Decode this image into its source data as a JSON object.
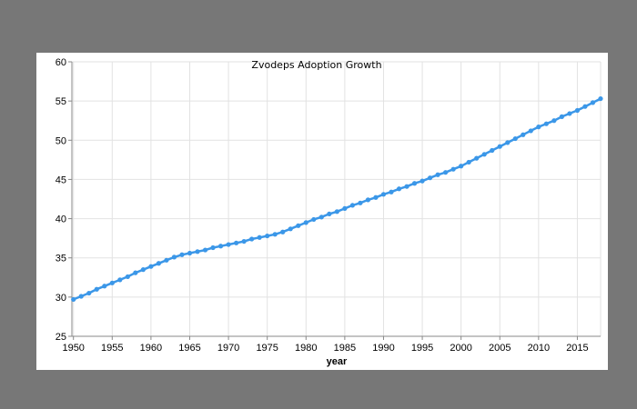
{
  "chart_data": {
    "type": "line",
    "title": "Zvodeps Adoption Growth",
    "xlabel": "year",
    "ylabel": "",
    "xlim": [
      1949.8,
      2018
    ],
    "ylim": [
      25,
      60
    ],
    "x_ticks": [
      1950,
      1955,
      1960,
      1965,
      1970,
      1975,
      1980,
      1985,
      1990,
      1995,
      2000,
      2005,
      2010,
      2015
    ],
    "y_ticks": [
      25,
      30,
      35,
      40,
      45,
      50,
      55,
      60
    ],
    "grid": true,
    "legend": null,
    "series": [
      {
        "name": "Zvodeps Adoption",
        "color": "#3b97e8",
        "marker": "circle",
        "x": [
          1950,
          1951,
          1952,
          1953,
          1954,
          1955,
          1956,
          1957,
          1958,
          1959,
          1960,
          1961,
          1962,
          1963,
          1964,
          1965,
          1966,
          1967,
          1968,
          1969,
          1970,
          1971,
          1972,
          1973,
          1974,
          1975,
          1976,
          1977,
          1978,
          1979,
          1980,
          1981,
          1982,
          1983,
          1984,
          1985,
          1986,
          1987,
          1988,
          1989,
          1990,
          1991,
          1992,
          1993,
          1994,
          1995,
          1996,
          1997,
          1998,
          1999,
          2000,
          2001,
          2002,
          2003,
          2004,
          2005,
          2006,
          2007,
          2008,
          2009,
          2010,
          2011,
          2012,
          2013,
          2014,
          2015,
          2016,
          2017,
          2018
        ],
        "values": [
          29.7,
          30.1,
          30.5,
          31.0,
          31.4,
          31.8,
          32.2,
          32.6,
          33.1,
          33.5,
          33.9,
          34.3,
          34.7,
          35.1,
          35.4,
          35.6,
          35.8,
          36.0,
          36.3,
          36.5,
          36.7,
          36.9,
          37.1,
          37.4,
          37.6,
          37.8,
          38.0,
          38.3,
          38.7,
          39.1,
          39.5,
          39.9,
          40.2,
          40.6,
          40.9,
          41.3,
          41.7,
          42.0,
          42.4,
          42.7,
          43.1,
          43.4,
          43.8,
          44.1,
          44.5,
          44.8,
          45.2,
          45.6,
          45.9,
          46.3,
          46.7,
          47.2,
          47.7,
          48.2,
          48.7,
          49.2,
          49.7,
          50.2,
          50.7,
          51.2,
          51.7,
          52.1,
          52.5,
          53.0,
          53.4,
          53.8,
          54.3,
          54.8,
          55.3
        ]
      }
    ]
  },
  "chart": {
    "title": "Zvodeps Adoption Growth",
    "xlabel": "year"
  }
}
